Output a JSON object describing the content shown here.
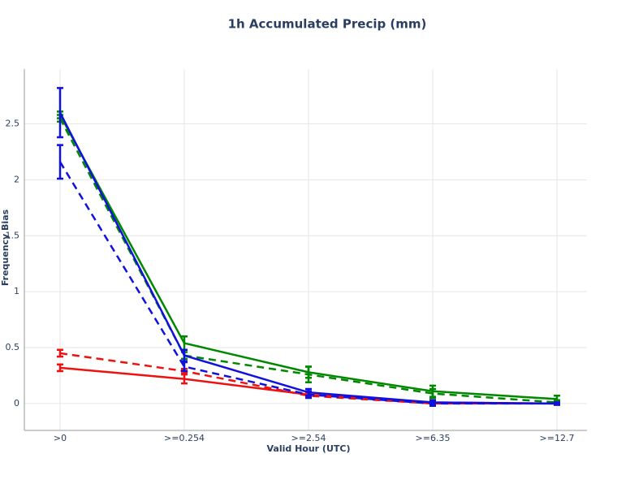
{
  "chart_data": {
    "type": "line",
    "title": "1h Accumulated Precip (mm)",
    "x_label": "Valid Hour (UTC)",
    "y_label": "Frequency Bias",
    "categories": [
      ">0",
      ">=0.254",
      ">=2.54",
      ">=6.35",
      ">=12.7"
    ],
    "ylim": [
      -0.24,
      2.99
    ],
    "yticks": [
      0,
      0.5,
      1,
      1.5,
      2,
      2.5
    ],
    "grid": true,
    "series": [
      {
        "color": "#ee1111",
        "line_style": "solid",
        "values": [
          0.32,
          0.22,
          0.08,
          0.01,
          0.0
        ],
        "errors": [
          0.03,
          0.04,
          0.02,
          0.01,
          0.01
        ]
      },
      {
        "color": "#ee1111",
        "line_style": "dashed",
        "values": [
          0.45,
          0.29,
          0.07,
          0.0,
          0.0
        ],
        "errors": [
          0.03,
          0.02,
          0.01,
          0.01,
          0.01
        ]
      },
      {
        "color": "#008800",
        "line_style": "solid",
        "values": [
          2.58,
          0.54,
          0.28,
          0.11,
          0.04
        ],
        "errors": [
          0.03,
          0.06,
          0.05,
          0.05,
          0.03
        ]
      },
      {
        "color": "#008800",
        "line_style": "dashed",
        "values": [
          2.55,
          0.43,
          0.26,
          0.09,
          0.01
        ],
        "errors": [
          0.03,
          0.03,
          0.07,
          0.04,
          0.02
        ]
      },
      {
        "color": "#1111dd",
        "line_style": "solid",
        "values": [
          2.6,
          0.43,
          0.1,
          0.01,
          0.0
        ],
        "errors": [
          0.22,
          0.05,
          0.03,
          0.02,
          0.01
        ]
      },
      {
        "color": "#1111dd",
        "line_style": "dashed",
        "values": [
          2.16,
          0.33,
          0.08,
          0.0,
          0.0
        ],
        "errors": [
          0.15,
          0.04,
          0.03,
          0.02,
          0.01
        ]
      }
    ]
  }
}
